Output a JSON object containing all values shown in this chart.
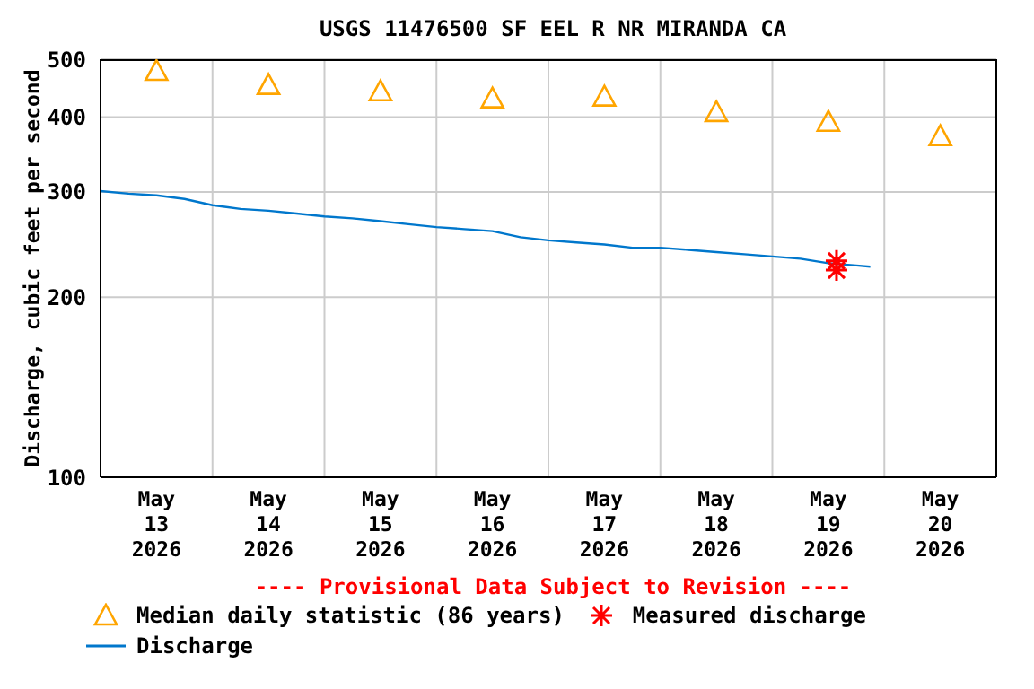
{
  "chart_data": {
    "type": "line",
    "title": "USGS 11476500 SF EEL R NR MIRANDA CA",
    "ylabel": "Discharge, cubic feet per second",
    "log": "y",
    "grid": true,
    "legend": "bottom",
    "xlim": [
      "2026-05-13T00:00",
      "2026-05-21T00:00"
    ],
    "xticks": [
      {
        "value": "2026-05-13T00:00",
        "label": null
      },
      {
        "value": "2026-05-13T12:00",
        "label": "May 13 2026"
      },
      {
        "value": "2026-05-14T00:00",
        "label": null
      },
      {
        "value": "2026-05-14T12:00",
        "label": "May 14 2026"
      },
      {
        "value": "2026-05-15T00:00",
        "label": null
      },
      {
        "value": "2026-05-15T12:00",
        "label": "May 15 2026"
      },
      {
        "value": "2026-05-16T00:00",
        "label": null
      },
      {
        "value": "2026-05-16T12:00",
        "label": "May 16 2026"
      },
      {
        "value": "2026-05-17T00:00",
        "label": null
      },
      {
        "value": "2026-05-17T12:00",
        "label": "May 17 2026"
      },
      {
        "value": "2026-05-18T00:00",
        "label": null
      },
      {
        "value": "2026-05-18T12:00",
        "label": "May 18 2026"
      },
      {
        "value": "2026-05-19T00:00",
        "label": null
      },
      {
        "value": "2026-05-19T12:00",
        "label": "May 19 2026"
      },
      {
        "value": "2026-05-20T00:00",
        "label": null
      },
      {
        "value": "2026-05-20T12:00",
        "label": "May 20 2026"
      },
      {
        "value": "2026-05-21T00:00",
        "label": null
      }
    ],
    "ylim": [
      100,
      500
    ],
    "yticks": [
      100,
      200,
      300,
      400,
      500
    ],
    "annotations": [
      "---- Provisional Data Subject to Revision ----"
    ],
    "series": [
      {
        "name": "Median daily statistic (86 years)",
        "type": "scatter",
        "marker": "triangle",
        "color": "#ffa500",
        "x": [
          "2026-05-13T12:00",
          "2026-05-14T12:00",
          "2026-05-15T12:00",
          "2026-05-16T12:00",
          "2026-05-17T12:00",
          "2026-05-18T12:00",
          "2026-05-19T12:00",
          "2026-05-20T12:00"
        ],
        "values": [
          478,
          453,
          442,
          430,
          433,
          408,
          393,
          372
        ]
      },
      {
        "name": "Measured discharge",
        "type": "scatter",
        "marker": "cross",
        "color": "#ff0000",
        "x": [
          "2026-05-19T13:45",
          "2026-05-19T13:45"
        ],
        "values": [
          230,
          222
        ]
      },
      {
        "name": "Discharge",
        "marker": "none",
        "color": "#0077cc",
        "x": [
          "2026-05-13T00:00",
          "2026-05-13T06:00",
          "2026-05-13T12:00",
          "2026-05-13T18:00",
          "2026-05-14T00:00",
          "2026-05-14T06:00",
          "2026-05-14T12:00",
          "2026-05-14T18:00",
          "2026-05-15T00:00",
          "2026-05-15T06:00",
          "2026-05-15T12:00",
          "2026-05-15T18:00",
          "2026-05-16T00:00",
          "2026-05-16T06:00",
          "2026-05-16T12:00",
          "2026-05-16T18:00",
          "2026-05-17T00:00",
          "2026-05-17T06:00",
          "2026-05-17T12:00",
          "2026-05-17T18:00",
          "2026-05-18T00:00",
          "2026-05-18T06:00",
          "2026-05-18T12:00",
          "2026-05-18T18:00",
          "2026-05-19T00:00",
          "2026-05-19T06:00",
          "2026-05-19T12:00",
          "2026-05-19T18:00",
          "2026-05-19T21:00"
        ],
        "values": [
          301,
          298,
          296,
          292,
          285,
          281,
          279,
          276,
          273,
          271,
          268,
          265,
          262,
          260,
          258,
          252,
          249,
          247,
          245,
          242,
          242,
          240,
          238,
          236,
          234,
          232,
          228,
          226,
          225
        ]
      }
    ]
  }
}
